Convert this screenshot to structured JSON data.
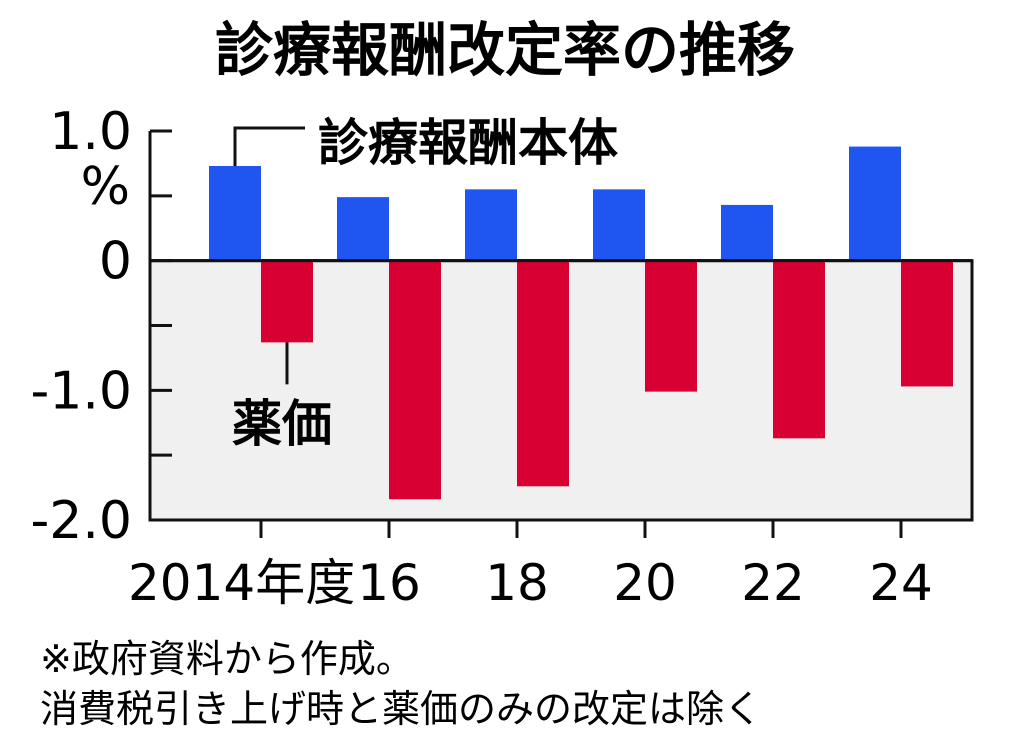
{
  "chart_data": {
    "type": "bar",
    "title": "診療報酬改定率の推移",
    "unit": "%",
    "categories": [
      "2014年度",
      "16",
      "18",
      "20",
      "22",
      "24"
    ],
    "series": [
      {
        "name": "診療報酬本体",
        "color": "#1f55f0",
        "values": [
          0.73,
          0.49,
          0.55,
          0.55,
          0.43,
          0.88
        ]
      },
      {
        "name": "薬価",
        "color": "#d80032",
        "values": [
          -0.63,
          -1.84,
          -1.74,
          -1.01,
          -1.37,
          -0.97
        ]
      }
    ],
    "yticks": [
      {
        "value": 1.0,
        "label": "1.0"
      },
      {
        "value": 0.5,
        "label": ""
      },
      {
        "value": 0,
        "label": "0"
      },
      {
        "value": -0.5,
        "label": ""
      },
      {
        "value": -1.0,
        "label": "-1.0"
      },
      {
        "value": -1.5,
        "label": ""
      },
      {
        "value": -2.0,
        "label": "-2.0"
      }
    ],
    "ylim": [
      -2.0,
      1.0
    ],
    "negative_region_color": "#f0f0f0",
    "notes": [
      "※政府資料から作成。",
      "消費税引き上げ時と薬価のみの改定は除く"
    ]
  }
}
